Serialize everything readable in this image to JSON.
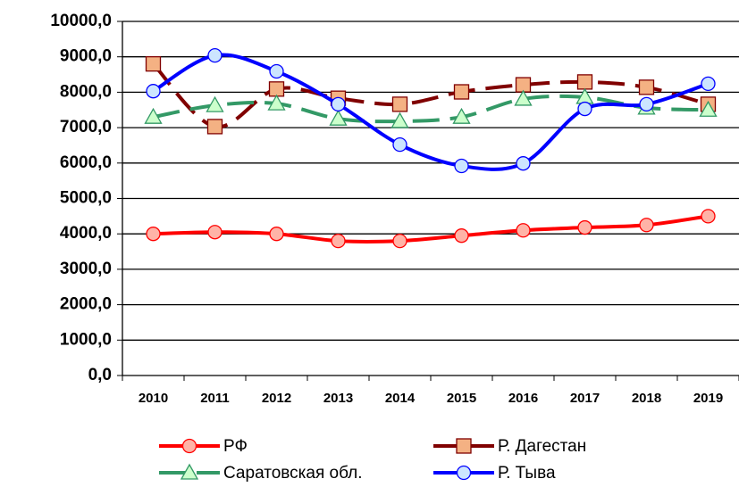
{
  "chart_data": {
    "type": "line",
    "categories": [
      "2010",
      "2011",
      "2012",
      "2013",
      "2014",
      "2015",
      "2016",
      "2017",
      "2018",
      "2019"
    ],
    "series": [
      {
        "name": "РФ",
        "color": "#ff0000",
        "marker": "circle",
        "marker_fill": "#ffb3a7",
        "dash": false,
        "values": [
          4000,
          4050,
          4000,
          3800,
          3800,
          3950,
          4100,
          4180,
          4250,
          4500
        ]
      },
      {
        "name": "Р. Дагестан",
        "color": "#800000",
        "marker": "square",
        "marker_fill": "#f4b183",
        "dash": true,
        "values": [
          8800,
          7030,
          8090,
          7830,
          7660,
          8010,
          8210,
          8290,
          8140,
          7660
        ]
      },
      {
        "name": "Саратовская обл.",
        "color": "#339966",
        "marker": "triangle",
        "marker_fill": "#ccffcc",
        "dash": true,
        "values": [
          7300,
          7630,
          7680,
          7250,
          7180,
          7300,
          7810,
          7860,
          7560,
          7500
        ]
      },
      {
        "name": "Р. Тыва",
        "color": "#0000ff",
        "marker": "circle",
        "marker_fill": "#cce5ff",
        "dash": false,
        "values": [
          8030,
          9040,
          8590,
          7660,
          6520,
          5920,
          5990,
          7530,
          7660,
          8240
        ]
      }
    ],
    "ylim": [
      0,
      10000
    ],
    "yticks": [
      {
        "value": 0,
        "label": "0,0"
      },
      {
        "value": 1000,
        "label": "1000,0"
      },
      {
        "value": 2000,
        "label": "2000,0"
      },
      {
        "value": 3000,
        "label": "3000,0"
      },
      {
        "value": 4000,
        "label": "4000,0"
      },
      {
        "value": 5000,
        "label": "5000,0"
      },
      {
        "value": 6000,
        "label": "6000,0"
      },
      {
        "value": 7000,
        "label": "7000,0"
      },
      {
        "value": 8000,
        "label": "8000,0"
      },
      {
        "value": 9000,
        "label": "9000,0"
      },
      {
        "value": 10000,
        "label": "10000,0"
      }
    ],
    "grid": true,
    "smooth": true,
    "legend": "bottom"
  }
}
